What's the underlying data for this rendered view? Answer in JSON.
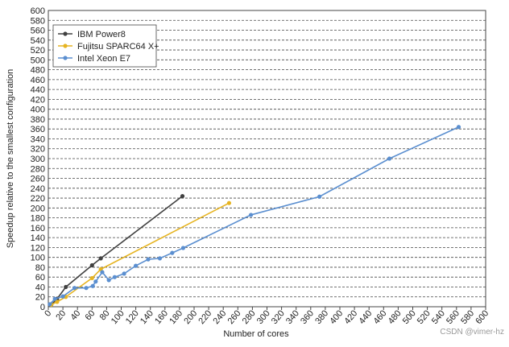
{
  "chart_data": {
    "type": "line",
    "x_label": "Number of cores",
    "y_label": "Speedup relative to the smallest configuration",
    "watermark": "CSDN @vimer-hz",
    "legend_position": "upper left",
    "grid": true,
    "xlim": [
      0,
      600
    ],
    "ylim": [
      0,
      600
    ],
    "xticks": [
      0,
      20,
      40,
      60,
      80,
      100,
      120,
      140,
      160,
      180,
      200,
      220,
      240,
      260,
      280,
      300,
      320,
      340,
      360,
      380,
      400,
      420,
      440,
      460,
      480,
      500,
      520,
      540,
      560,
      580,
      600
    ],
    "yticks": [
      0,
      20,
      40,
      60,
      80,
      100,
      120,
      140,
      160,
      180,
      200,
      220,
      240,
      260,
      280,
      300,
      320,
      340,
      360,
      380,
      400,
      420,
      440,
      460,
      480,
      500,
      520,
      540,
      560,
      580,
      600
    ],
    "series": [
      {
        "name": "IBM Power8",
        "color": "#404040",
        "x": [
          4,
          12,
          24,
          60,
          72,
          184
        ],
        "values": [
          4,
          16,
          40,
          84,
          98,
          224
        ]
      },
      {
        "name": "Fujitsu SPARC64 X+",
        "color": "#e6b422",
        "x": [
          4,
          12,
          24,
          60,
          72,
          248
        ],
        "values": [
          4,
          10,
          20,
          58,
          76,
          210
        ]
      },
      {
        "name": "Intel Xeon E7",
        "color": "#5b8fd0",
        "x": [
          2,
          9,
          20,
          36,
          52,
          61,
          65,
          74,
          83,
          91,
          104,
          120,
          137,
          153,
          170,
          185,
          278,
          372,
          468,
          563
        ],
        "values": [
          5,
          16,
          21,
          38,
          38,
          42,
          51,
          70,
          54,
          60,
          67,
          83,
          96,
          98,
          109,
          119,
          186,
          223,
          300,
          364
        ]
      }
    ]
  }
}
